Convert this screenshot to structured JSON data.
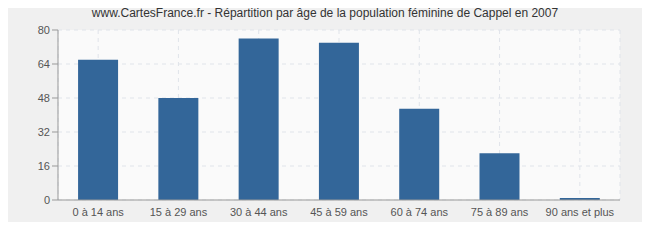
{
  "chart_data": {
    "type": "bar",
    "title": "www.CartesFrance.fr - Répartition par âge de la population féminine de Cappel en 2007",
    "categories": [
      "0 à 14 ans",
      "15 à 29 ans",
      "30 à 44 ans",
      "45 à 59 ans",
      "60 à 74 ans",
      "75 à 89 ans",
      "90 ans et plus"
    ],
    "values": [
      66,
      48,
      76,
      74,
      43,
      22,
      1
    ],
    "color": "#336699",
    "ylim": [
      0,
      80
    ],
    "yticks": [
      0,
      16,
      32,
      48,
      64,
      80
    ],
    "grid": true
  }
}
